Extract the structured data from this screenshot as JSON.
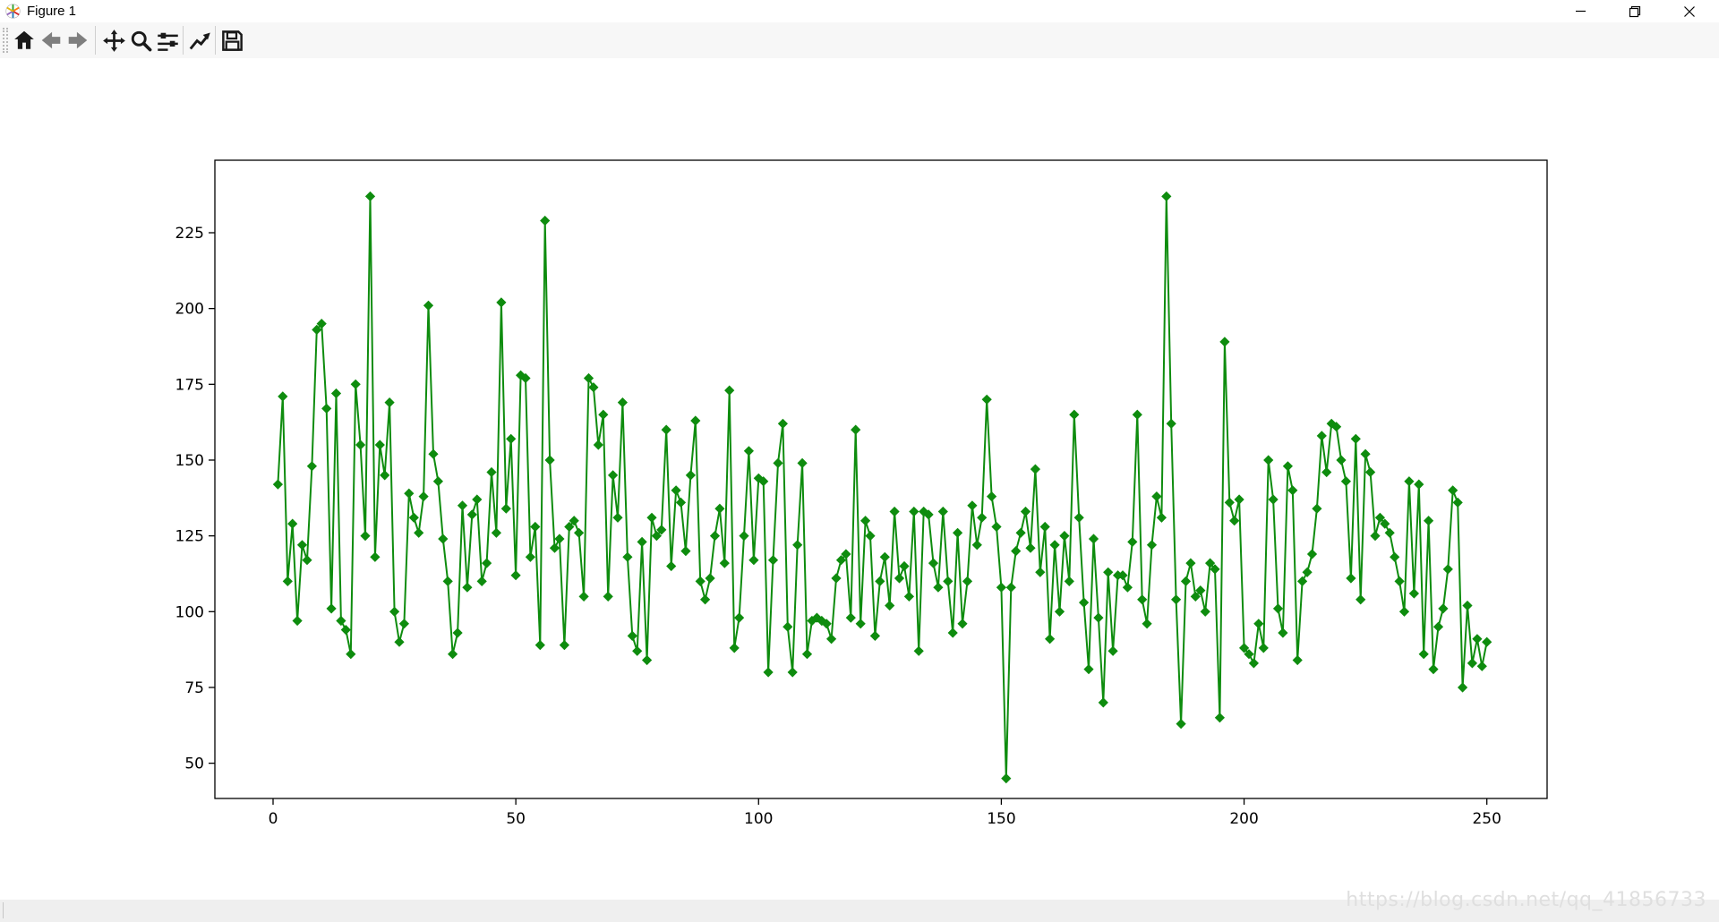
{
  "window": {
    "title": "Figure 1",
    "icons": [
      "matplotlib-logo-icon",
      "minimize-icon",
      "restore-icon",
      "close-icon"
    ]
  },
  "toolbar": {
    "icons": [
      "home-icon",
      "back-icon",
      "forward-icon",
      "pan-icon",
      "zoom-icon",
      "subplots-icon",
      "customize-icon",
      "save-icon"
    ]
  },
  "chart_data": {
    "type": "line",
    "title": "",
    "xlabel": "",
    "ylabel": "",
    "legend": null,
    "grid": false,
    "x_ticks": [
      0,
      50,
      100,
      150,
      200,
      250
    ],
    "y_ticks": [
      50,
      75,
      100,
      125,
      150,
      175,
      200,
      225
    ],
    "xlim": [
      -12,
      262
    ],
    "ylim": [
      38,
      249
    ],
    "marker": "diamond",
    "line_color": "#0e8c0e",
    "x_start": 1,
    "values": [
      142,
      171,
      110,
      129,
      97,
      122,
      117,
      148,
      193,
      195,
      167,
      101,
      172,
      97,
      94,
      86,
      175,
      155,
      125,
      237,
      118,
      155,
      145,
      169,
      100,
      90,
      96,
      139,
      131,
      126,
      138,
      201,
      152,
      143,
      124,
      110,
      86,
      93,
      135,
      108,
      132,
      137,
      110,
      116,
      146,
      126,
      202,
      134,
      157,
      112,
      178,
      177,
      118,
      128,
      89,
      229,
      150,
      121,
      124,
      89,
      128,
      130,
      126,
      105,
      177,
      174,
      155,
      165,
      105,
      145,
      131,
      169,
      118,
      92,
      87,
      123,
      84,
      131,
      125,
      127,
      160,
      115,
      140,
      136,
      120,
      145,
      163,
      110,
      104,
      111,
      125,
      134,
      116,
      173,
      88,
      98,
      125,
      153,
      117,
      144,
      143,
      80,
      117,
      149,
      162,
      95,
      80,
      122,
      149,
      86,
      97,
      98,
      97,
      96,
      91,
      111,
      117,
      119,
      98,
      160,
      96,
      130,
      125,
      92,
      110,
      118,
      102,
      133,
      111,
      115,
      105,
      133,
      87,
      133,
      132,
      116,
      108,
      133,
      110,
      93,
      126,
      96,
      110,
      135,
      122,
      131,
      170,
      138,
      128,
      108,
      45,
      108,
      120,
      126,
      133,
      121,
      147,
      113,
      128,
      91,
      122,
      100,
      125,
      110,
      165,
      131,
      103,
      81,
      124,
      98,
      70,
      113,
      87,
      112,
      112,
      108,
      123,
      165,
      104,
      96,
      122,
      138,
      131,
      237,
      162,
      104,
      63,
      110,
      116,
      105,
      107,
      100,
      116,
      114,
      65,
      189,
      136,
      130,
      137,
      88,
      86,
      83,
      96,
      88,
      150,
      137,
      101,
      93,
      148,
      140,
      84,
      110,
      113,
      119,
      134,
      158,
      146,
      162,
      161,
      150,
      143,
      111,
      157,
      104,
      152,
      146,
      125,
      131,
      129,
      126,
      118,
      110,
      100,
      143,
      106,
      142,
      86,
      130,
      81,
      95,
      101,
      114,
      140,
      136,
      75,
      102,
      83,
      91,
      82,
      90
    ]
  },
  "watermark": {
    "text": "https://blog.csdn.net/qq_41856733"
  },
  "status_bar": {
    "text": ""
  }
}
